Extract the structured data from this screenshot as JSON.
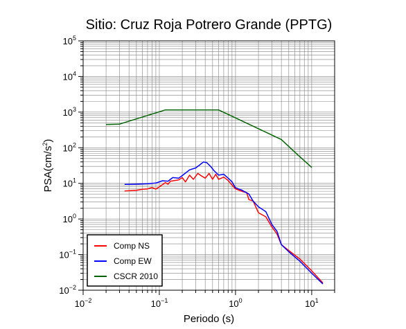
{
  "chart_data": {
    "type": "line",
    "title": "Sitio: Cruz Roja Potrero Grande (PPTG)",
    "xlabel": "Periodo (s)",
    "ylabel": {
      "main": "PSA(cm/s",
      "sup": "2",
      "close": ")"
    },
    "x_scale": "log",
    "y_scale": "log",
    "xlim": [
      0.01,
      20
    ],
    "ylim": [
      0.01,
      100000
    ],
    "grid": true,
    "legend_position": "bottom-left",
    "x_ticks": [
      {
        "base": "10",
        "exp": "−2",
        "value": 0.01
      },
      {
        "base": "10",
        "exp": "−1",
        "value": 0.1
      },
      {
        "base": "10",
        "exp": "0",
        "value": 1
      },
      {
        "base": "10",
        "exp": "1",
        "value": 10
      }
    ],
    "y_ticks": [
      {
        "base": "10",
        "exp": "−2",
        "value": 0.01
      },
      {
        "base": "10",
        "exp": "−1",
        "value": 0.1
      },
      {
        "base": "10",
        "exp": "0",
        "value": 1
      },
      {
        "base": "10",
        "exp": "1",
        "value": 10
      },
      {
        "base": "10",
        "exp": "2",
        "value": 100
      },
      {
        "base": "10",
        "exp": "3",
        "value": 1000
      },
      {
        "base": "10",
        "exp": "4",
        "value": 10000
      },
      {
        "base": "10",
        "exp": "5",
        "value": 100000
      }
    ],
    "series": [
      {
        "name": "Comp NS",
        "color": "#ff0000",
        "points": [
          [
            0.035,
            6.1
          ],
          [
            0.05,
            6.4
          ],
          [
            0.06,
            6.8
          ],
          [
            0.07,
            7.0
          ],
          [
            0.08,
            7.6
          ],
          [
            0.09,
            6.9
          ],
          [
            0.1,
            8.0
          ],
          [
            0.11,
            9.2
          ],
          [
            0.12,
            10.5
          ],
          [
            0.13,
            9.5
          ],
          [
            0.14,
            11.5
          ],
          [
            0.16,
            12.0
          ],
          [
            0.18,
            12.5
          ],
          [
            0.2,
            14.5
          ],
          [
            0.22,
            11.0
          ],
          [
            0.25,
            17.0
          ],
          [
            0.28,
            13.0
          ],
          [
            0.32,
            19.0
          ],
          [
            0.36,
            16.0
          ],
          [
            0.4,
            14.0
          ],
          [
            0.45,
            19.0
          ],
          [
            0.5,
            13.0
          ],
          [
            0.55,
            18.0
          ],
          [
            0.6,
            13.0
          ],
          [
            0.7,
            15.0
          ],
          [
            0.8,
            12.0
          ],
          [
            0.9,
            9.0
          ],
          [
            1.0,
            7.0
          ],
          [
            1.2,
            6.0
          ],
          [
            1.4,
            5.5
          ],
          [
            1.5,
            3.5
          ],
          [
            1.7,
            3.2
          ],
          [
            2.0,
            1.5
          ],
          [
            2.5,
            1.15
          ],
          [
            3.0,
            0.6
          ],
          [
            3.5,
            0.38
          ],
          [
            4.0,
            0.19
          ],
          [
            5.0,
            0.13
          ],
          [
            7.0,
            0.075
          ],
          [
            10.0,
            0.035
          ],
          [
            14.0,
            0.016
          ]
        ]
      },
      {
        "name": "Comp EW",
        "color": "#0000ff",
        "points": [
          [
            0.035,
            9.3
          ],
          [
            0.05,
            9.5
          ],
          [
            0.07,
            9.8
          ],
          [
            0.09,
            10.2
          ],
          [
            0.11,
            11.8
          ],
          [
            0.13,
            11.5
          ],
          [
            0.15,
            14.5
          ],
          [
            0.18,
            14.0
          ],
          [
            0.2,
            16.5
          ],
          [
            0.25,
            24.0
          ],
          [
            0.3,
            27.0
          ],
          [
            0.34,
            33.0
          ],
          [
            0.38,
            40.0
          ],
          [
            0.42,
            38.0
          ],
          [
            0.47,
            30.0
          ],
          [
            0.52,
            23.0
          ],
          [
            0.6,
            17.0
          ],
          [
            0.7,
            18.0
          ],
          [
            0.8,
            14.0
          ],
          [
            0.9,
            11.0
          ],
          [
            1.0,
            7.5
          ],
          [
            1.2,
            6.5
          ],
          [
            1.5,
            5.0
          ],
          [
            1.7,
            3.2
          ],
          [
            2.0,
            2.2
          ],
          [
            2.5,
            1.6
          ],
          [
            3.0,
            0.7
          ],
          [
            3.5,
            0.45
          ],
          [
            4.0,
            0.19
          ],
          [
            5.0,
            0.12
          ],
          [
            7.0,
            0.065
          ],
          [
            10.0,
            0.03
          ],
          [
            14.0,
            0.015
          ]
        ]
      },
      {
        "name": "CSCR 2010",
        "color": "#006400",
        "points": [
          [
            0.02,
            450
          ],
          [
            0.03,
            460
          ],
          [
            0.12,
            1150
          ],
          [
            0.6,
            1150
          ],
          [
            4.0,
            170
          ],
          [
            6.0,
            75
          ],
          [
            10.0,
            28
          ]
        ]
      }
    ]
  }
}
